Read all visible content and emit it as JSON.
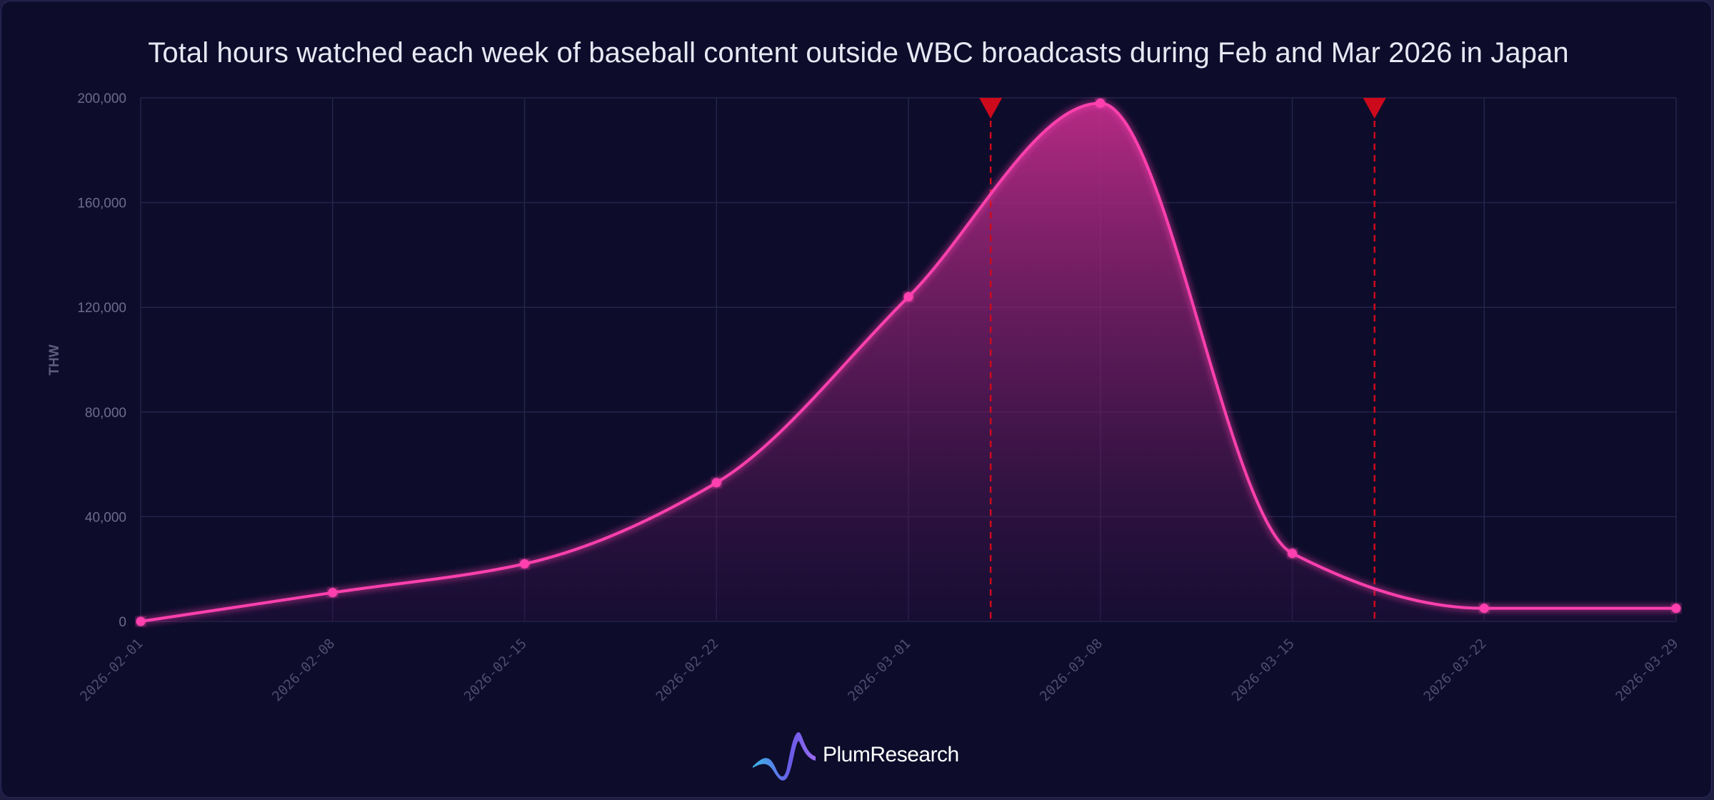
{
  "chart_data": {
    "type": "area",
    "title": "Total hours watched each week of baseball content outside WBC broadcasts during Feb and Mar 2026 in Japan",
    "xlabel": "",
    "ylabel": "THW",
    "x": [
      "2026-02-01",
      "2026-02-08",
      "2026-02-15",
      "2026-02-22",
      "2026-03-01",
      "2026-03-08",
      "2026-03-15",
      "2026-03-22",
      "2026-03-29"
    ],
    "values": [
      0,
      11000,
      22000,
      53000,
      124000,
      198000,
      26000,
      5000,
      5000
    ],
    "ylim": [
      0,
      200000
    ],
    "yticks": [
      "0",
      "40,000",
      "80,000",
      "120,000",
      "160,000",
      "200,000"
    ],
    "ytick_values": [
      0,
      40000,
      80000,
      120000,
      160000,
      200000
    ],
    "event_markers": [
      "2026-03-04",
      "2026-03-18"
    ],
    "grid": true,
    "colors": {
      "line": "#ff3fae",
      "marker": "#cc0a1c",
      "grid": "#24234a",
      "tick_text": "#6e6c8c"
    }
  },
  "brand": {
    "name": "PlumResearch",
    "logo_icon": "plum-wave-logo-icon"
  }
}
